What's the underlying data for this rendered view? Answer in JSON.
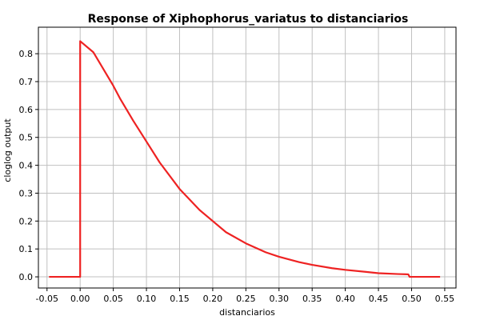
{
  "chart_data": {
    "type": "line",
    "title": "Response of Xiphophorus_variatus to distanciarios",
    "xlabel": "distanciarios",
    "ylabel": "cloglog output",
    "xlim": [
      -0.063,
      0.567
    ],
    "ylim": [
      -0.04,
      0.895
    ],
    "x_ticks": [
      -0.05,
      0.0,
      0.05,
      0.1,
      0.15,
      0.2,
      0.25,
      0.3,
      0.35,
      0.4,
      0.45,
      0.5,
      0.55
    ],
    "x_tick_labels": [
      "-0.05",
      "0.00",
      "0.05",
      "0.10",
      "0.15",
      "0.20",
      "0.25",
      "0.30",
      "0.35",
      "0.40",
      "0.45",
      "0.50",
      "0.55"
    ],
    "y_ticks": [
      0.0,
      0.1,
      0.2,
      0.3,
      0.4,
      0.5,
      0.6,
      0.7,
      0.8
    ],
    "y_tick_labels": [
      "0.0",
      "0.1",
      "0.2",
      "0.3",
      "0.4",
      "0.5",
      "0.6",
      "0.7",
      "0.8"
    ],
    "grid": true,
    "series": [
      {
        "color": "#ee2222",
        "points": [
          [
            -0.047,
            0.0
          ],
          [
            0.0,
            0.0
          ],
          [
            0.0,
            0.845
          ],
          [
            0.02,
            0.805
          ],
          [
            0.035,
            0.745
          ],
          [
            0.05,
            0.685
          ],
          [
            0.06,
            0.64
          ],
          [
            0.08,
            0.56
          ],
          [
            0.1,
            0.485
          ],
          [
            0.12,
            0.41
          ],
          [
            0.15,
            0.315
          ],
          [
            0.18,
            0.24
          ],
          [
            0.2,
            0.2
          ],
          [
            0.22,
            0.16
          ],
          [
            0.25,
            0.12
          ],
          [
            0.28,
            0.088
          ],
          [
            0.3,
            0.072
          ],
          [
            0.33,
            0.053
          ],
          [
            0.35,
            0.043
          ],
          [
            0.38,
            0.031
          ],
          [
            0.4,
            0.025
          ],
          [
            0.43,
            0.018
          ],
          [
            0.45,
            0.013
          ],
          [
            0.48,
            0.01
          ],
          [
            0.495,
            0.009
          ],
          [
            0.497,
            0.0
          ],
          [
            0.543,
            0.0
          ]
        ]
      }
    ]
  }
}
